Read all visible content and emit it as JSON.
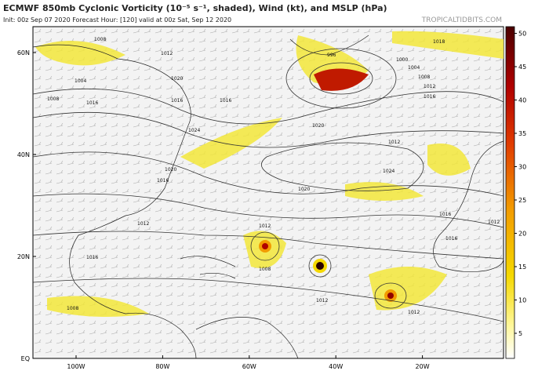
{
  "header": {
    "title": "ECMWF 850mb Cyclonic Vorticity (10⁻⁵ s⁻¹, shaded), Wind (kt), and MSLP (hPa)",
    "subtitle": "Init: 00z Sep 07 2020   Forecast Hour: [120]   valid at 00z Sat, Sep 12 2020",
    "watermark": "TROPICALTIDBITS.COM"
  },
  "map": {
    "lat_ticks": [
      {
        "value": 60,
        "label": "60N"
      },
      {
        "value": 40,
        "label": "40N"
      },
      {
        "value": 20,
        "label": "20N"
      },
      {
        "value": 0,
        "label": "EQ"
      }
    ],
    "lon_ticks": [
      {
        "value": -100,
        "label": "100W"
      },
      {
        "value": -80,
        "label": "80W"
      },
      {
        "value": -60,
        "label": "60W"
      },
      {
        "value": -40,
        "label": "40W"
      },
      {
        "value": -20,
        "label": "20W"
      }
    ],
    "isobar_labels": [
      "1008",
      "1012",
      "1004",
      "1008",
      "1016",
      "1020",
      "1016",
      "1024",
      "1020",
      "1016",
      "1012",
      "1016",
      "1018",
      "996",
      "1000",
      "1004",
      "1008",
      "1012",
      "1016",
      "1020",
      "1012",
      "1024",
      "1020",
      "1016",
      "1016",
      "1012",
      "1008",
      "1012",
      "1012",
      "1008",
      "1012",
      "1016"
    ]
  },
  "colorbar": {
    "ticks": [
      5,
      10,
      15,
      20,
      25,
      30,
      35,
      40,
      45,
      50
    ]
  }
}
